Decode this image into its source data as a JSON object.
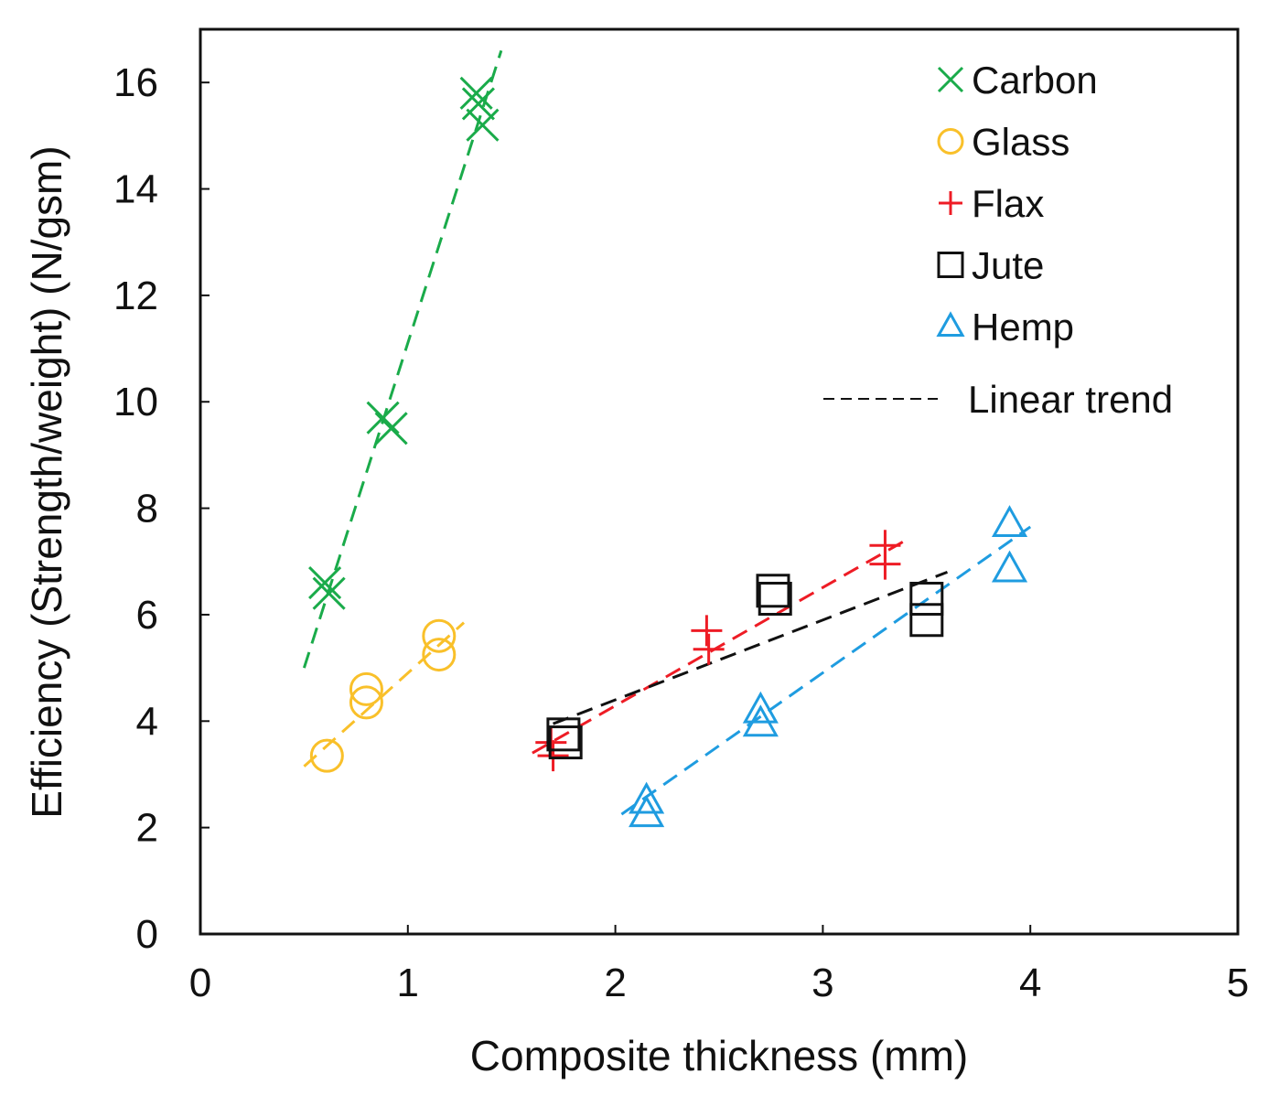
{
  "chart_data": {
    "type": "scatter",
    "title": "",
    "xlabel": "Composite thickness (mm)",
    "ylabel": "Efficiency (Strength/weight) (N/gsm)",
    "xlim": [
      0,
      5
    ],
    "ylim": [
      0,
      17
    ],
    "xticks": [
      "0",
      "1",
      "2",
      "3",
      "4",
      "5"
    ],
    "yticks": [
      "0",
      "2",
      "4",
      "6",
      "8",
      "10",
      "12",
      "14",
      "16"
    ],
    "legend_position": "top-right",
    "series": [
      {
        "name": "Carbon",
        "marker": "x",
        "color": "#1aab4a",
        "points": [
          [
            0.6,
            6.6
          ],
          [
            0.62,
            6.4
          ],
          [
            0.88,
            9.7
          ],
          [
            0.92,
            9.5
          ],
          [
            1.33,
            15.8
          ],
          [
            1.34,
            15.6
          ],
          [
            1.36,
            15.2
          ]
        ],
        "trend": [
          [
            0.5,
            5.0
          ],
          [
            1.45,
            16.6
          ]
        ]
      },
      {
        "name": "Glass",
        "marker": "circle",
        "color": "#f9c02a",
        "points": [
          [
            0.61,
            3.35
          ],
          [
            0.8,
            4.6
          ],
          [
            0.8,
            4.35
          ],
          [
            1.15,
            5.6
          ],
          [
            1.15,
            5.25
          ]
        ],
        "trend": [
          [
            0.5,
            3.15
          ],
          [
            1.27,
            5.85
          ]
        ]
      },
      {
        "name": "Flax",
        "marker": "plus",
        "color": "#ee1c25",
        "points": [
          [
            1.69,
            3.6
          ],
          [
            1.7,
            3.35
          ],
          [
            2.44,
            5.7
          ],
          [
            2.45,
            5.35
          ],
          [
            3.3,
            7.3
          ],
          [
            3.3,
            6.95
          ]
        ],
        "trend": [
          [
            1.6,
            3.4
          ],
          [
            3.4,
            7.4
          ]
        ]
      },
      {
        "name": "Jute",
        "marker": "square",
        "color": "#111111",
        "points": [
          [
            1.75,
            3.75
          ],
          [
            1.76,
            3.6
          ],
          [
            2.76,
            6.45
          ],
          [
            2.77,
            6.3
          ],
          [
            3.5,
            6.3
          ],
          [
            3.5,
            5.9
          ]
        ],
        "trend": [
          [
            1.7,
            3.95
          ],
          [
            3.6,
            6.8
          ]
        ]
      },
      {
        "name": "Hemp",
        "marker": "triangle",
        "color": "#1f9ce0",
        "points": [
          [
            2.15,
            2.5
          ],
          [
            2.15,
            2.25
          ],
          [
            2.7,
            4.2
          ],
          [
            2.7,
            3.95
          ],
          [
            3.9,
            7.7
          ],
          [
            3.9,
            6.85
          ]
        ],
        "trend": [
          [
            2.03,
            2.25
          ],
          [
            4.0,
            7.65
          ]
        ]
      }
    ],
    "trend_legend": {
      "label": "Linear trend",
      "color": "#111111"
    }
  }
}
